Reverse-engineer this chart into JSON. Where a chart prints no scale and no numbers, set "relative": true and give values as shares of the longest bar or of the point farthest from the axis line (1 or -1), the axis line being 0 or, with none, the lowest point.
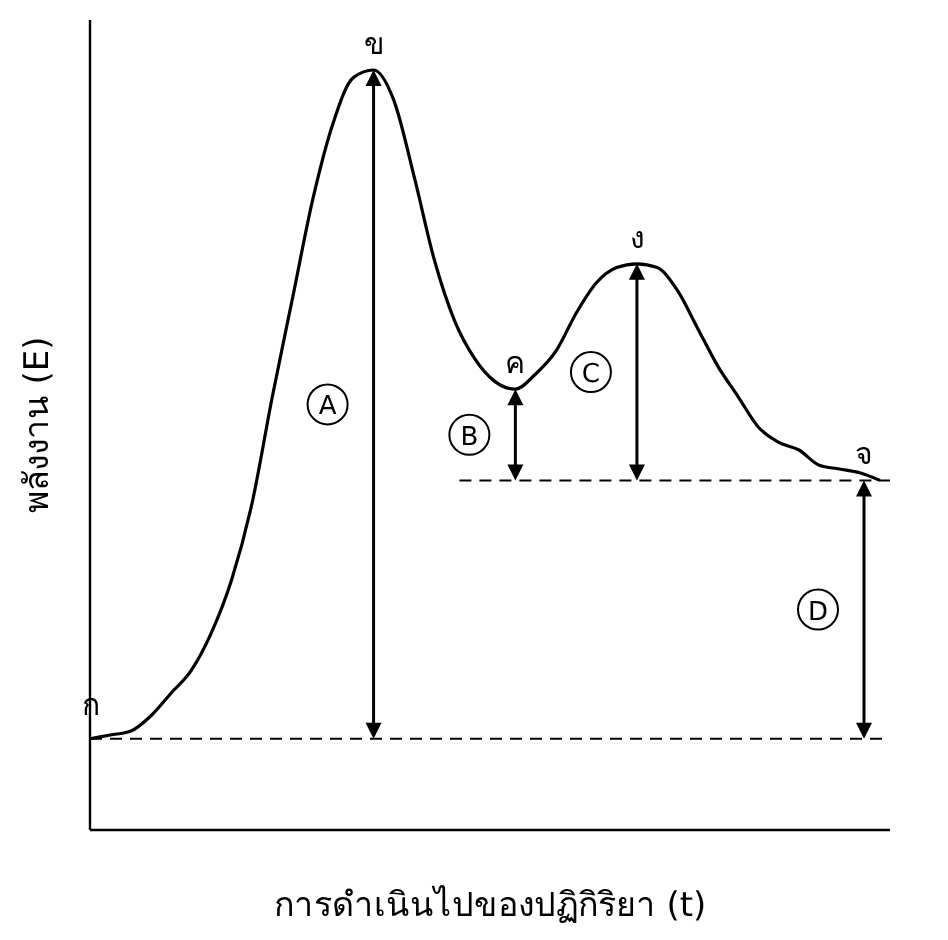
{
  "chart_data": {
    "type": "line",
    "relative": true,
    "xlabel": "การดำเนินไปของปฏิกิริยา (t)",
    "ylabel": "พลังงาน (E)",
    "categories": [
      null,
      null,
      null,
      null,
      null,
      null,
      null,
      null,
      null,
      null,
      null,
      null,
      null,
      null,
      null,
      null,
      null,
      null,
      null,
      null,
      null,
      null,
      null,
      null,
      null,
      null,
      null,
      null,
      null,
      null,
      null,
      null,
      null,
      null,
      null,
      null,
      null,
      null,
      null,
      null
    ],
    "series": [
      {
        "color": "#000000",
        "values": [
          0.12,
          0.125,
          0.13,
          0.15,
          0.18,
          0.21,
          0.26,
          0.33,
          0.43,
          0.57,
          0.7,
          0.83,
          0.93,
          0.99,
          1,
          0.96,
          0.86,
          0.75,
          0.67,
          0.62,
          0.59,
          0.58,
          0.6,
          0.63,
          0.68,
          0.72,
          0.74,
          0.745,
          0.74,
          0.71,
          0.66,
          0.61,
          0.57,
          0.53,
          0.51,
          0.5,
          0.48,
          0.475,
          0.47,
          0.46
        ]
      }
    ],
    "ref_lines": [
      {
        "axis": "y",
        "value": 0.12,
        "line_style": "dashed",
        "color": "#000000"
      },
      {
        "axis": "y",
        "value": 0.46,
        "line_style": "dashed",
        "color": "#000000"
      }
    ],
    "annotations": [
      "ก",
      "ข",
      "ค",
      "ง",
      "จ",
      "A",
      "B",
      "C",
      "D"
    ],
    "marker": "none",
    "line_style": "solid"
  }
}
